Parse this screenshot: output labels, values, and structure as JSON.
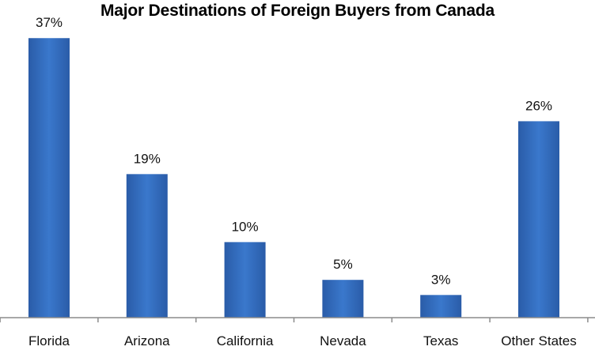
{
  "chart_data": {
    "type": "bar",
    "title": "Major Destinations of Foreign Buyers from Canada",
    "categories": [
      "Florida",
      "Arizona",
      "California",
      "Nevada",
      "Texas",
      "Other States"
    ],
    "values": [
      37,
      19,
      10,
      5,
      3,
      26
    ],
    "value_labels": [
      "37%",
      "19%",
      "10%",
      "5%",
      "3%",
      "26%"
    ],
    "unit": "%",
    "ylim": [
      0,
      41
    ],
    "grid": false,
    "legend": "none",
    "bar_color": "#3A78CC",
    "bar_color_dark": "#2A5CA8"
  }
}
